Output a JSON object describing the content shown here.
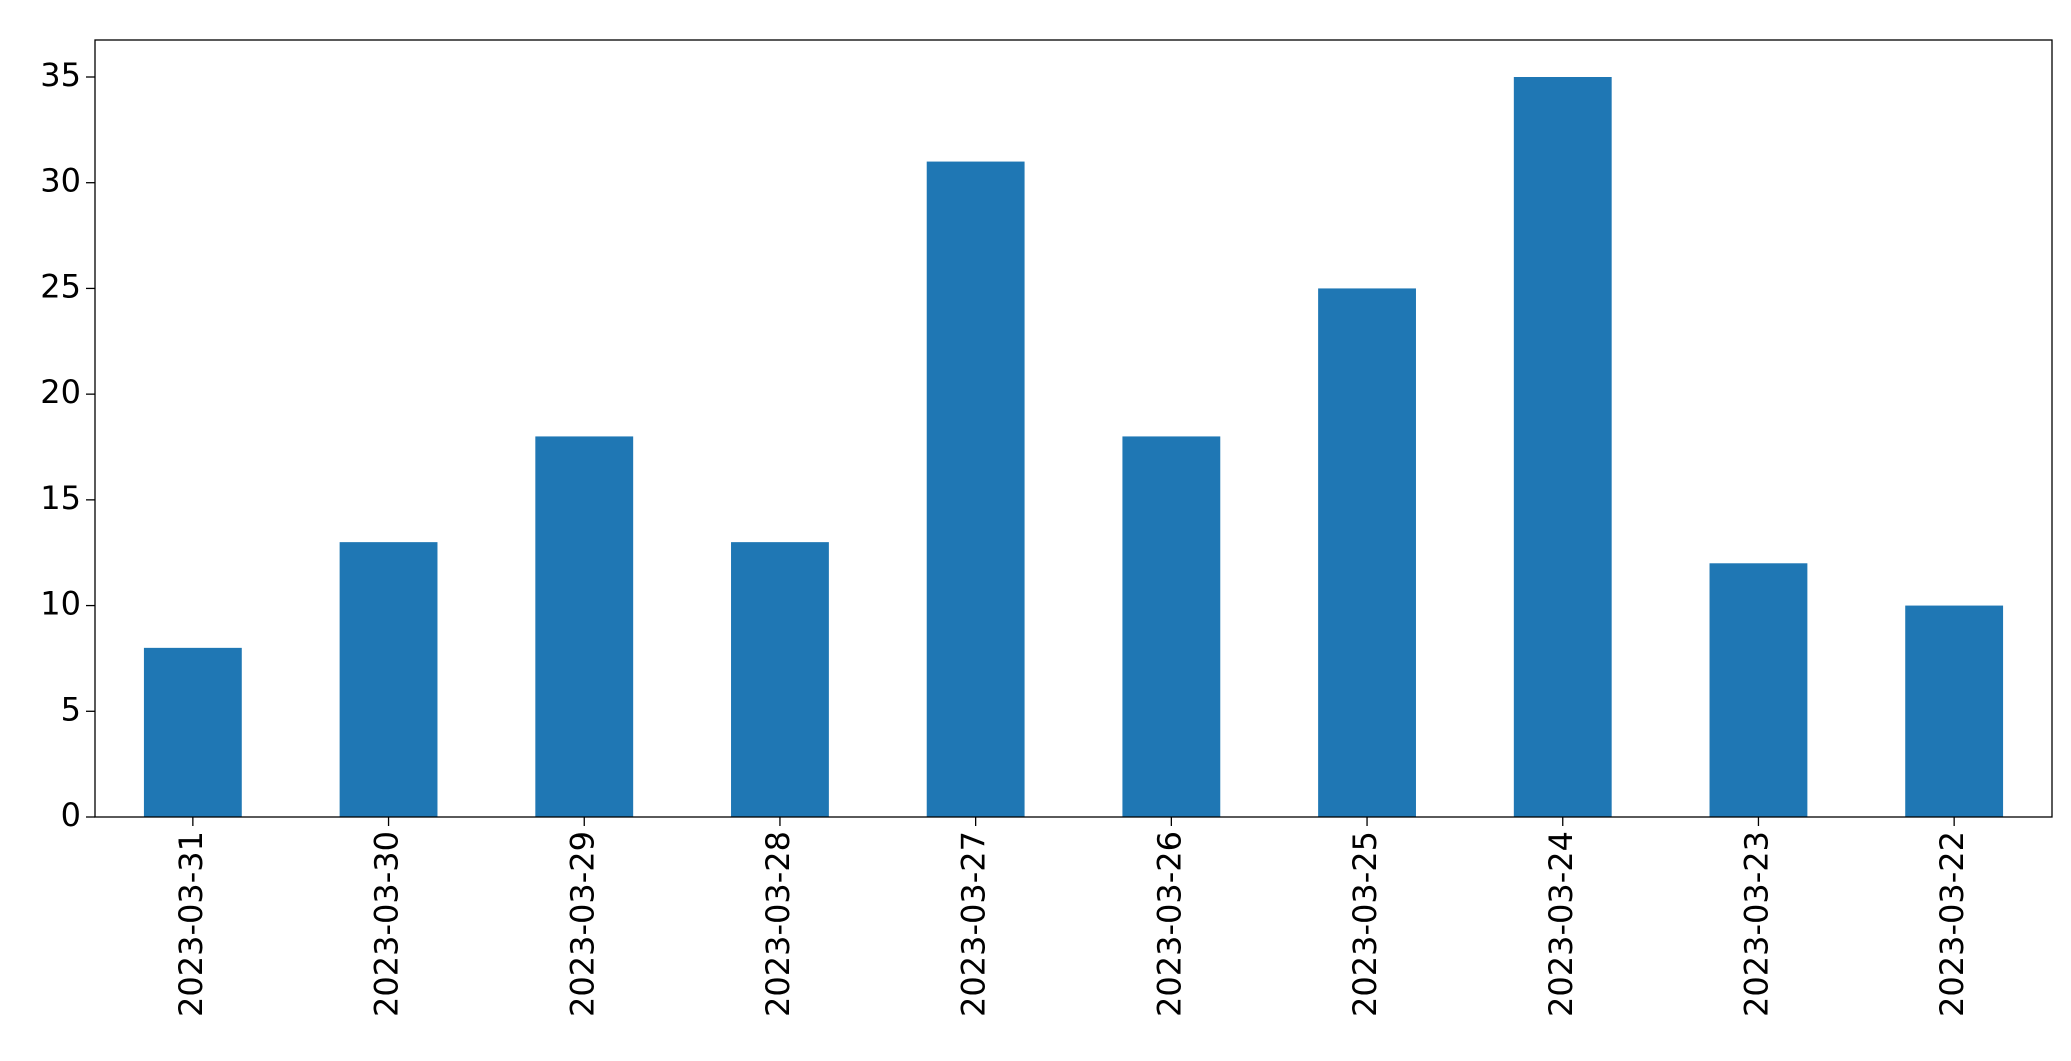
{
  "chart_data": {
    "type": "bar",
    "categories": [
      "2023-03-31",
      "2023-03-30",
      "2023-03-29",
      "2023-03-28",
      "2023-03-27",
      "2023-03-26",
      "2023-03-25",
      "2023-03-24",
      "2023-03-23",
      "2023-03-22"
    ],
    "values": [
      8,
      13,
      18,
      13,
      31,
      18,
      25,
      35,
      12,
      10
    ],
    "color": "#1f77b4",
    "ylim": [
      0,
      36.75
    ],
    "yticks": [
      0,
      5,
      10,
      15,
      20,
      25,
      30,
      35
    ],
    "grid": false
  }
}
